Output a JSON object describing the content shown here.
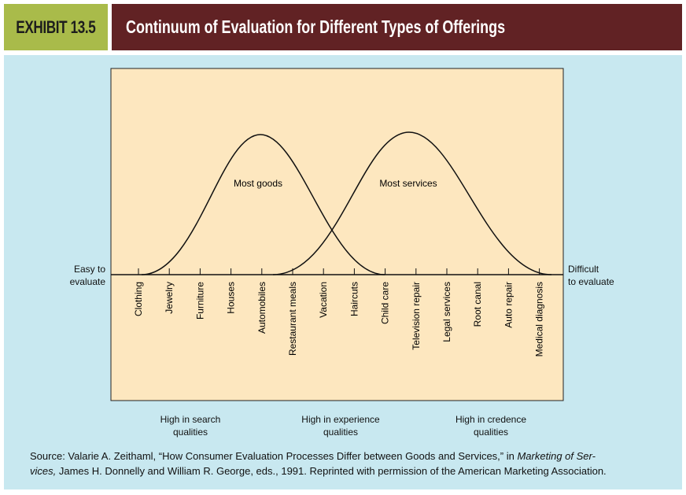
{
  "header": {
    "exhibit": "EXHIBIT 13.5",
    "title": "Continuum of Evaluation for Different Types of Offerings"
  },
  "diagram": {
    "left_label": [
      "Easy to",
      "evaluate"
    ],
    "right_label": [
      "Difficult",
      "to evaluate"
    ],
    "curves": [
      "Most goods",
      "Most services"
    ],
    "items": [
      "Clothing",
      "Jewelry",
      "Furniture",
      "Houses",
      "Automobiles",
      "Restaurant meals",
      "Vacation",
      "Haircuts",
      "Child care",
      "Television repair",
      "Legal services",
      "Root canal",
      "Auto repair",
      "Medical diagnosis"
    ],
    "categories": [
      [
        "High in search",
        "qualities"
      ],
      [
        "High in experience",
        "qualities"
      ],
      [
        "High in credence",
        "qualities"
      ]
    ]
  },
  "source": {
    "pre": "Source: Valarie A. Zeithaml, “How Consumer Evaluation Processes Differ between Goods and Services,” in ",
    "italic1": "Marketing of Ser-",
    "italic2": "vices,",
    "post": " James H. Donnelly and William R. George, eds., 1991. Reprinted with permission of the American Marketing Association."
  },
  "colors": {
    "exhibit_bg": "#a9bb4a",
    "title_bg": "#612224",
    "panel_bg": "#c8e8f0",
    "chart_bg": "#fde7bf"
  }
}
